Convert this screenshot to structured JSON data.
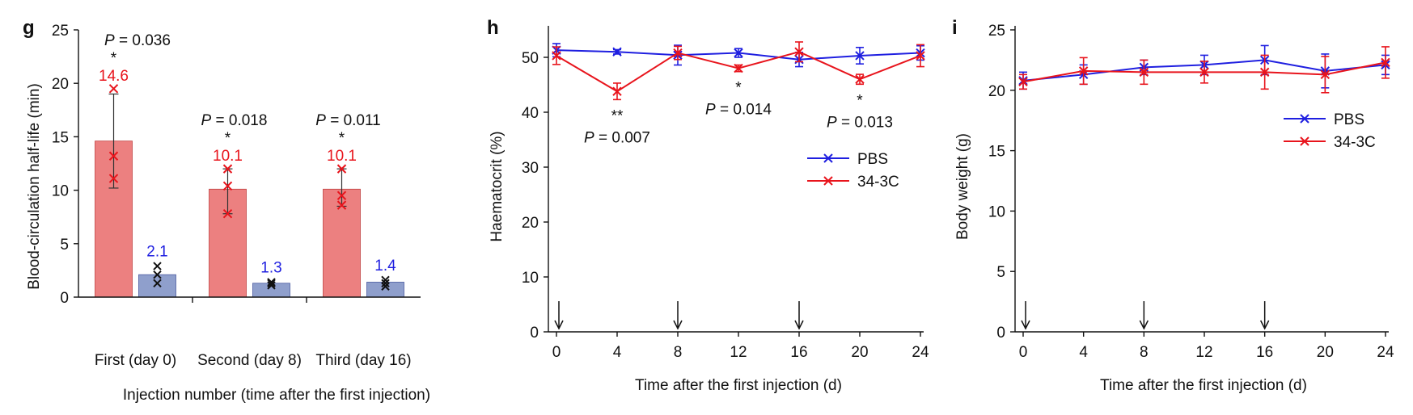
{
  "colors": {
    "red": "#e8141c",
    "blue": "#1f1fe0",
    "bar_red": "#ec8080",
    "bar_blue": "#8f9fcc",
    "axis": "#111111"
  },
  "chart_data": [
    {
      "panel": "g",
      "type": "bar",
      "xlabel": "Injection number (time after the first injection)",
      "ylabel": "Blood-circulation half-life (min)",
      "ylim": [
        0,
        25
      ],
      "yticks": [
        0,
        5,
        10,
        15,
        20,
        25
      ],
      "categories": [
        "First (day 0)",
        "Second (day 8)",
        "Third (day 16)"
      ],
      "series": [
        {
          "name": "34-3C",
          "color": "red",
          "values": [
            14.6,
            10.1,
            10.1
          ],
          "labels": [
            "14.6",
            "10.1",
            "10.1"
          ],
          "err_low": [
            10.2,
            7.8,
            8.5
          ],
          "err_high": [
            19.0,
            12.0,
            12.0
          ],
          "points": [
            [
              19.5,
              13.2,
              11.1
            ],
            [
              12.0,
              10.4,
              7.8
            ],
            [
              12.0,
              9.5,
              8.6
            ]
          ]
        },
        {
          "name": "PBS",
          "color": "blue",
          "values": [
            2.1,
            1.3,
            1.4
          ],
          "labels": [
            "2.1",
            "1.3",
            "1.4"
          ],
          "points": [
            [
              2.9,
              2.1,
              1.3
            ],
            [
              1.4,
              1.3,
              1.1
            ],
            [
              1.6,
              1.3,
              1.0
            ]
          ]
        }
      ],
      "significance": [
        {
          "stars": "*",
          "p": "= 0.036"
        },
        {
          "stars": "*",
          "p": "= 0.018"
        },
        {
          "stars": "*",
          "p": "= 0.011"
        }
      ]
    },
    {
      "panel": "h",
      "type": "line",
      "xlabel": "Time after the first injection (d)",
      "ylabel": "Haematocrit (%)",
      "ylim": [
        0,
        55
      ],
      "yticks": [
        0,
        10,
        20,
        30,
        40,
        50
      ],
      "xlim": [
        0,
        24
      ],
      "xticks": [
        0,
        4,
        8,
        12,
        16,
        20,
        24
      ],
      "x": [
        0,
        4,
        8,
        12,
        16,
        20,
        24
      ],
      "series": [
        {
          "name": "PBS",
          "color": "blue",
          "values": [
            51.3,
            51.0,
            50.4,
            50.8,
            49.6,
            50.3,
            50.8
          ],
          "err": [
            1.2,
            0.4,
            1.8,
            0.8,
            1.3,
            1.5,
            1.3
          ]
        },
        {
          "name": "34-3C",
          "color": "red",
          "values": [
            50.3,
            43.8,
            50.8,
            48.0,
            51.0,
            46.0,
            50.3
          ],
          "err": [
            1.6,
            1.5,
            1.2,
            0.6,
            1.8,
            0.9,
            2.0
          ]
        }
      ],
      "injection_days": [
        0,
        8,
        16
      ],
      "significance": [
        {
          "x": 4,
          "stars": "**",
          "p": "= 0.007"
        },
        {
          "x": 12,
          "stars": "*",
          "p": "= 0.014"
        },
        {
          "x": 20,
          "stars": "*",
          "p": "= 0.013"
        }
      ],
      "legend": [
        "PBS",
        "34-3C"
      ]
    },
    {
      "panel": "i",
      "type": "line",
      "xlabel": "Time after the first injection (d)",
      "ylabel": "Body weight (g)",
      "ylim": [
        0,
        25
      ],
      "yticks": [
        0,
        5,
        10,
        15,
        20,
        25
      ],
      "xlim": [
        0,
        24
      ],
      "xticks": [
        0,
        4,
        8,
        12,
        16,
        20,
        24
      ],
      "x": [
        0,
        4,
        8,
        12,
        16,
        20,
        24
      ],
      "series": [
        {
          "name": "PBS",
          "color": "blue",
          "values": [
            20.8,
            21.3,
            21.9,
            22.1,
            22.5,
            21.6,
            22.1
          ],
          "err": [
            0.7,
            0.8,
            0.6,
            0.8,
            1.2,
            1.4,
            0.8
          ]
        },
        {
          "name": "34-3C",
          "color": "red",
          "values": [
            20.7,
            21.6,
            21.5,
            21.5,
            21.5,
            21.3,
            22.3
          ],
          "err": [
            0.6,
            1.1,
            1.0,
            0.9,
            1.4,
            1.5,
            1.3
          ]
        }
      ],
      "injection_days": [
        0,
        8,
        16
      ],
      "legend": [
        "PBS",
        "34-3C"
      ]
    }
  ]
}
